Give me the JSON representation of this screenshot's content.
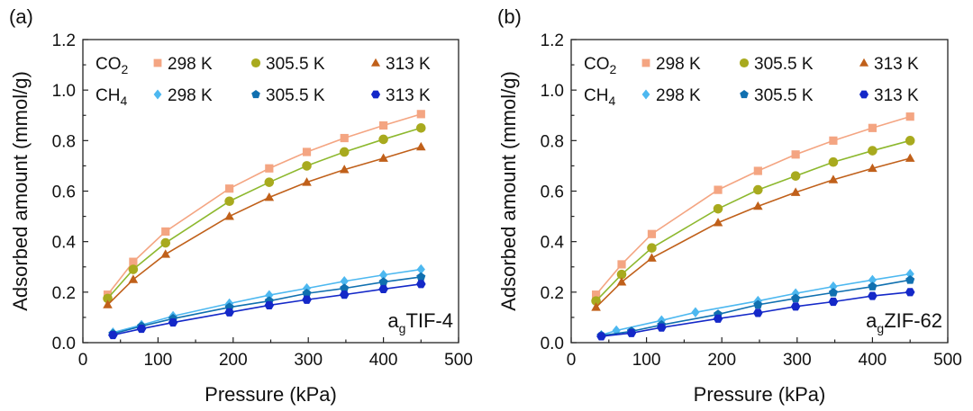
{
  "colors": {
    "co2_298": "#F4A582",
    "co2_305": "#A8AA1E",
    "co2_305_line": "#8DB82E",
    "co2_313": "#C0601A",
    "ch4_298": "#4DB8F0",
    "ch4_305": "#1070B0",
    "ch4_313": "#1428C8",
    "axis": "#222222"
  },
  "chart_data": [
    {
      "type": "line",
      "panel_label": "(a)",
      "sample_label": {
        "main": "a",
        "sub": "g",
        "rest": "TIF-4"
      },
      "title": "",
      "xlabel": "Pressure (kPa)",
      "ylabel": "Adsorbed amount (mmol/g)",
      "xlim": [
        0,
        500
      ],
      "ylim": [
        0,
        1.2
      ],
      "xticks": [
        "0",
        "100",
        "200",
        "300",
        "400",
        "500"
      ],
      "yticks": [
        "0.0",
        "0.2",
        "0.4",
        "0.6",
        "0.8",
        "1.0",
        "1.2"
      ],
      "grid": false,
      "legend": {
        "placement": "top-left",
        "rows": [
          {
            "gas": "CO",
            "gas_sub": "2",
            "entries": [
              "298 K",
              "305.5 K",
              "313 K"
            ]
          },
          {
            "gas": "CH",
            "gas_sub": "4",
            "entries": [
              "298 K",
              "305.5 K",
              "313 K"
            ]
          }
        ]
      },
      "series": [
        {
          "name": "CO2 298 K",
          "marker": "square",
          "color_key": "co2_298",
          "x": [
            33,
            67,
            110,
            195,
            248,
            298,
            348,
            400,
            450
          ],
          "y": [
            0.19,
            0.32,
            0.44,
            0.61,
            0.69,
            0.755,
            0.81,
            0.86,
            0.905
          ]
        },
        {
          "name": "CO2 305.5 K",
          "marker": "circle",
          "color_key": "co2_305",
          "x": [
            33,
            67,
            110,
            195,
            248,
            298,
            348,
            400,
            450
          ],
          "y": [
            0.175,
            0.29,
            0.395,
            0.56,
            0.635,
            0.7,
            0.755,
            0.805,
            0.85
          ]
        },
        {
          "name": "CO2 313 K",
          "marker": "triangle",
          "color_key": "co2_313",
          "x": [
            33,
            67,
            110,
            195,
            248,
            298,
            348,
            400,
            450
          ],
          "y": [
            0.15,
            0.25,
            0.35,
            0.5,
            0.575,
            0.635,
            0.685,
            0.73,
            0.775
          ]
        },
        {
          "name": "CH4 298 K",
          "marker": "diamond",
          "color_key": "ch4_298",
          "x": [
            40,
            78,
            120,
            195,
            248,
            298,
            348,
            400,
            450
          ],
          "y": [
            0.04,
            0.07,
            0.105,
            0.155,
            0.188,
            0.215,
            0.243,
            0.268,
            0.29
          ]
        },
        {
          "name": "CH4 305.5 K",
          "marker": "pentagon",
          "color_key": "ch4_305",
          "x": [
            40,
            78,
            120,
            195,
            248,
            298,
            348,
            400,
            450
          ],
          "y": [
            0.035,
            0.065,
            0.095,
            0.14,
            0.165,
            0.195,
            0.215,
            0.24,
            0.26
          ]
        },
        {
          "name": "CH4 313 K",
          "marker": "hexagon",
          "color_key": "ch4_313",
          "x": [
            40,
            78,
            120,
            195,
            248,
            298,
            348,
            400,
            450
          ],
          "y": [
            0.03,
            0.055,
            0.08,
            0.12,
            0.148,
            0.17,
            0.19,
            0.212,
            0.232
          ]
        }
      ]
    },
    {
      "type": "line",
      "panel_label": "(b)",
      "sample_label": {
        "main": "a",
        "sub": "g",
        "rest": "ZIF-62"
      },
      "title": "",
      "xlabel": "Pressure (kPa)",
      "ylabel": "Adsorbed amount (mmol/g)",
      "xlim": [
        0,
        500
      ],
      "ylim": [
        0,
        1.2
      ],
      "xticks": [
        "0",
        "100",
        "200",
        "300",
        "400",
        "500"
      ],
      "yticks": [
        "0.0",
        "0.2",
        "0.4",
        "0.6",
        "0.8",
        "1.0",
        "1.2"
      ],
      "grid": false,
      "legend": {
        "placement": "top-left",
        "rows": [
          {
            "gas": "CO",
            "gas_sub": "2",
            "entries": [
              "298 K",
              "305.5 K",
              "313 K"
            ]
          },
          {
            "gas": "CH",
            "gas_sub": "4",
            "entries": [
              "298 K",
              "305.5 K",
              "313 K"
            ]
          }
        ]
      },
      "series": [
        {
          "name": "CO2 298 K",
          "marker": "square",
          "color_key": "co2_298",
          "x": [
            33,
            67,
            107,
            195,
            248,
            298,
            348,
            400,
            450
          ],
          "y": [
            0.19,
            0.31,
            0.43,
            0.605,
            0.68,
            0.745,
            0.8,
            0.85,
            0.895
          ]
        },
        {
          "name": "CO2 305.5 K",
          "marker": "circle",
          "color_key": "co2_305",
          "x": [
            33,
            67,
            107,
            195,
            248,
            298,
            348,
            400,
            450
          ],
          "y": [
            0.165,
            0.27,
            0.375,
            0.53,
            0.605,
            0.66,
            0.715,
            0.76,
            0.8
          ]
        },
        {
          "name": "CO2 313 K",
          "marker": "triangle",
          "color_key": "co2_313",
          "x": [
            33,
            67,
            107,
            195,
            248,
            298,
            348,
            400,
            450
          ],
          "y": [
            0.14,
            0.24,
            0.335,
            0.475,
            0.54,
            0.595,
            0.645,
            0.69,
            0.73
          ]
        },
        {
          "name": "CH4 298 K",
          "marker": "diamond",
          "color_key": "ch4_298",
          "x": [
            40,
            60,
            120,
            165,
            248,
            298,
            348,
            400,
            450
          ],
          "y": [
            0.03,
            0.048,
            0.088,
            0.12,
            0.165,
            0.195,
            0.222,
            0.248,
            0.272
          ]
        },
        {
          "name": "CH4 305.5 K",
          "marker": "pentagon",
          "color_key": "ch4_305",
          "x": [
            40,
            80,
            120,
            195,
            248,
            298,
            348,
            400,
            450
          ],
          "y": [
            0.028,
            0.045,
            0.07,
            0.112,
            0.15,
            0.175,
            0.198,
            0.222,
            0.248
          ]
        },
        {
          "name": "CH4 313 K",
          "marker": "hexagon",
          "color_key": "ch4_313",
          "x": [
            40,
            80,
            120,
            195,
            248,
            298,
            348,
            400,
            450
          ],
          "y": [
            0.025,
            0.038,
            0.06,
            0.095,
            0.118,
            0.143,
            0.162,
            0.185,
            0.2
          ]
        }
      ]
    }
  ]
}
